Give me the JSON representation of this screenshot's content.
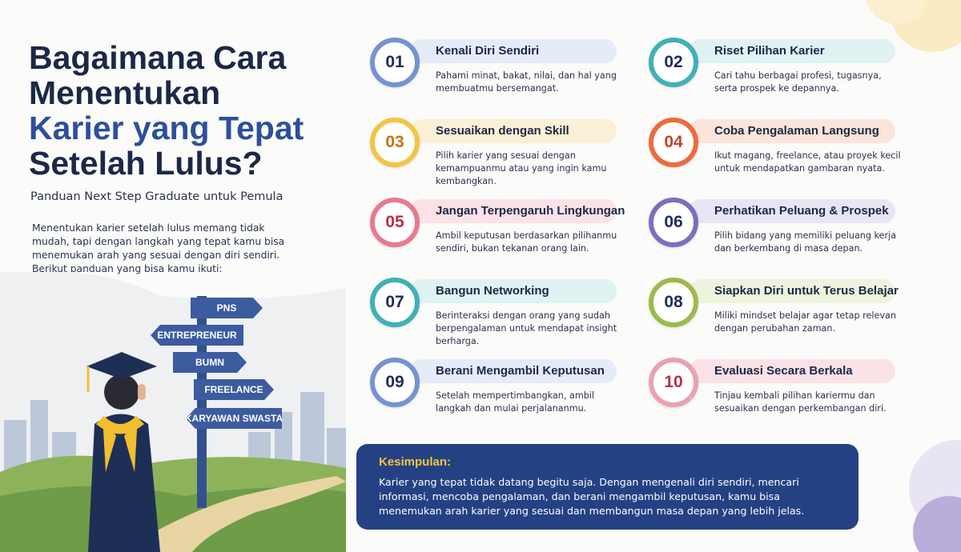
{
  "header": {
    "title_lines": [
      "Bagaimana Cara",
      "Menentukan",
      "Karier yang Tepat",
      "Setelah Lulus?"
    ],
    "subtitle": "Panduan Next Step Graduate untuk Pemula",
    "intro": "Menentukan karier setelah lulus memang tidak mudah, tapi dengan langkah yang tepat kamu bisa menemukan arah yang sesuai dengan diri sendiri. Berikut panduan yang bisa kamu ikuti:"
  },
  "signpost": [
    "PNS",
    "ENTREPRENEUR",
    "BUMN",
    "FREELANCE",
    "KARYAWAN SWASTA"
  ],
  "steps": [
    {
      "number": "01",
      "title": "Kenali Diri Sendiri",
      "description": "Pahami minat, bakat, nilai, dan hal yang membuatmu bersemangat."
    },
    {
      "number": "02",
      "title": "Riset Pilihan Karier",
      "description": "Cari tahu berbagai profesi, tugasnya, serta prospek ke depannya."
    },
    {
      "number": "03",
      "title": "Sesuaikan dengan Skill",
      "description": "Pilih karier yang sesuai dengan kemampuanmu atau yang ingin kamu kembangkan."
    },
    {
      "number": "04",
      "title": "Coba Pengalaman Langsung",
      "description": "Ikut magang, freelance, atau proyek kecil untuk mendapatkan gambaran nyata."
    },
    {
      "number": "05",
      "title": "Jangan Terpengaruh Lingkungan",
      "description": "Ambil keputusan berdasarkan pilihanmu sendiri, bukan tekanan orang lain."
    },
    {
      "number": "06",
      "title": "Perhatikan Peluang & Prospek",
      "description": "Pilih bidang yang memiliki peluang kerja dan berkembang di masa depan."
    },
    {
      "number": "07",
      "title": "Bangun Networking",
      "description": "Berinteraksi dengan orang yang sudah berpengalaman untuk mendapat insight berharga."
    },
    {
      "number": "08",
      "title": "Siapkan Diri untuk Terus Belajar",
      "description": "Miliki mindset belajar agar tetap relevan dengan perubahan zaman."
    },
    {
      "number": "09",
      "title": "Berani Mengambil Keputusan",
      "description": "Setelah mempertimbangkan, ambil langkah dan mulai perjalananmu."
    },
    {
      "number": "10",
      "title": "Evaluasi Secara Berkala",
      "description": "Tinjau kembali pilihan kariermu dan sesuaikan dengan perkembangan diri."
    }
  ],
  "conclusion": {
    "title": "Kesimpulan:",
    "text": "Karier yang tepat tidak datang begitu saja. Dengan mengenali diri sendiri, mencari informasi, mencoba pengalaman, dan berani mengambil keputusan, kamu bisa menemukan arah karier yang sesuai dan membangun masa depan yang lebih jelas."
  }
}
